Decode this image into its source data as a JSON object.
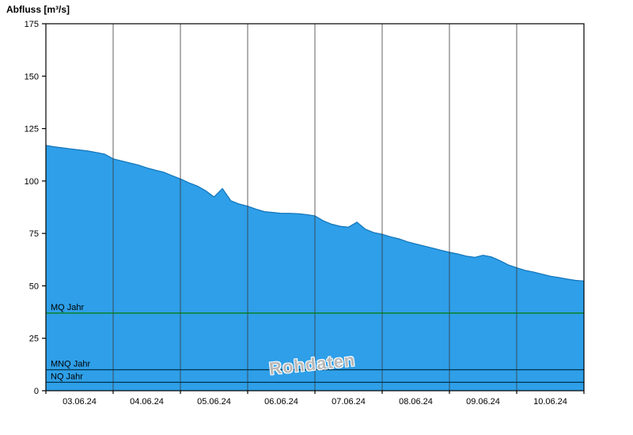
{
  "title": "Abfluss [m³/s]",
  "watermark": "Rohdaten",
  "chart_data": {
    "type": "area",
    "title": "Abfluss [m³/s]",
    "xlabel": "",
    "ylabel": "Abfluss [m³/s]",
    "ylim": [
      0,
      175
    ],
    "ytick_interval": 25,
    "ytick_labels": [
      "0",
      "25",
      "50",
      "75",
      "100",
      "125",
      "150",
      "175"
    ],
    "categories": [
      "03.06.24",
      "04.06.24",
      "05.06.24",
      "06.06.24",
      "07.06.24",
      "08.06.24",
      "09.06.24",
      "10.06.24"
    ],
    "samples_per_day": 8,
    "series": [
      {
        "name": "Rohdaten",
        "values": [
          117,
          116.3,
          115.8,
          115.3,
          114.8,
          114.3,
          113.6,
          112.8,
          110.6,
          109.6,
          108.6,
          107.6,
          106.3,
          105.2,
          104.2,
          102.6,
          101,
          99.2,
          97.6,
          95.4,
          92.4,
          96.4,
          90.6,
          89,
          88,
          86.6,
          85.4,
          85,
          84.6,
          84.6,
          84.4,
          84,
          83.4,
          81,
          79.4,
          78.4,
          78,
          80.4,
          77,
          75.4,
          74.6,
          73.4,
          72.4,
          71,
          70,
          69,
          68,
          67,
          66,
          65.2,
          64.2,
          63.6,
          64.6,
          63.8,
          62,
          60,
          58.6,
          57.4,
          56.6,
          55.6,
          54.6,
          54,
          53.2,
          52.6,
          52.3
        ]
      }
    ],
    "reference_lines": [
      {
        "label": "MQ Jahr",
        "value": 37,
        "color": "#007f00"
      },
      {
        "label": "MNQ Jahr",
        "value": 10,
        "color": "#00334d"
      },
      {
        "label": "NQ Jahr",
        "value": 4,
        "color": "#00334d"
      }
    ],
    "colors": {
      "area_fill": "#2e9fe8",
      "area_edge": "#1173b8",
      "gridline": "#3a3a3a",
      "axis": "#000000",
      "label_text": "#000000"
    },
    "grid": "vertical-day-boundaries",
    "legend_position": "none"
  }
}
